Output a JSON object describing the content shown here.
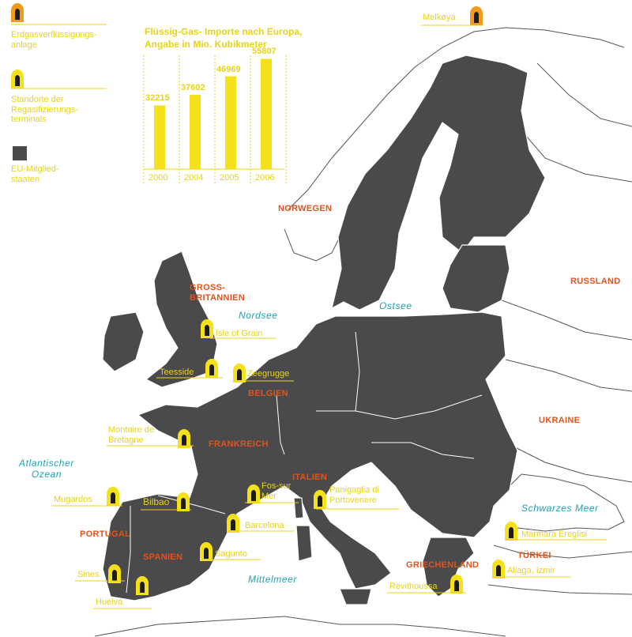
{
  "legend": {
    "liquefaction": "Erdgasverflüssigungs-anlage",
    "regasification": "Standorte der Regasifizierungs-terminals",
    "eu_members": "EU-Mitglied-staaten"
  },
  "chart_data": {
    "type": "bar",
    "title": "Flüssig-Gas- Importe nach Europa,\nAngabe in Mio. Kubikmeter",
    "categories": [
      "2000",
      "2004",
      "2005",
      "2006"
    ],
    "values": [
      32215,
      37602,
      46969,
      55807
    ],
    "ylim": [
      0,
      60000
    ]
  },
  "countries": {
    "norwegen": "NORWEGEN",
    "gb": "GROSS-BRITANNIEN",
    "belgien": "BELGIEN",
    "frankreich": "FRANKREICH",
    "italien": "ITALIEN",
    "portugal": "PORTUGAL",
    "spanien": "SPANIEN",
    "griechenland": "GRIECHENLAND",
    "tuerkei": "TÜRKEI",
    "russland": "RUSSLAND",
    "ukraine": "UKRAINE"
  },
  "seas": {
    "nordsee": "Nordsee",
    "ostsee": "Ostsee",
    "atlantik": "Atlantischer Ozean",
    "schwarzes_meer": "Schwarzes Meer",
    "mittelmeer": "Mittelmeer"
  },
  "sites": {
    "melkoya": "Melkøya",
    "isle_of_grain": "Isle of Grain",
    "teesside": "Teesside",
    "zeegrugge": "Zeegrugge",
    "montoire": "Montoire de Bretagne",
    "mugardos": "Mugardos",
    "bilbao": "Bilbao",
    "fos": "Fos-sur Mer",
    "panigaglia": "Panigaglia di Portovenere",
    "barcelona": "Barcelona",
    "sagunto": "Sagunto",
    "sines": "Sines",
    "huelva": "Huelva",
    "revithoussa": "Revithoussa",
    "marmara": "Marmara Ereglisi",
    "aliaga": "Aliaga, Izmir"
  },
  "colors": {
    "eu_fill": "#4a4a4c",
    "non_eu_line": "#555555",
    "accent_yellow": "#f5e11a",
    "country_orange": "#e2531b",
    "sea_teal": "#1aa2b5"
  }
}
